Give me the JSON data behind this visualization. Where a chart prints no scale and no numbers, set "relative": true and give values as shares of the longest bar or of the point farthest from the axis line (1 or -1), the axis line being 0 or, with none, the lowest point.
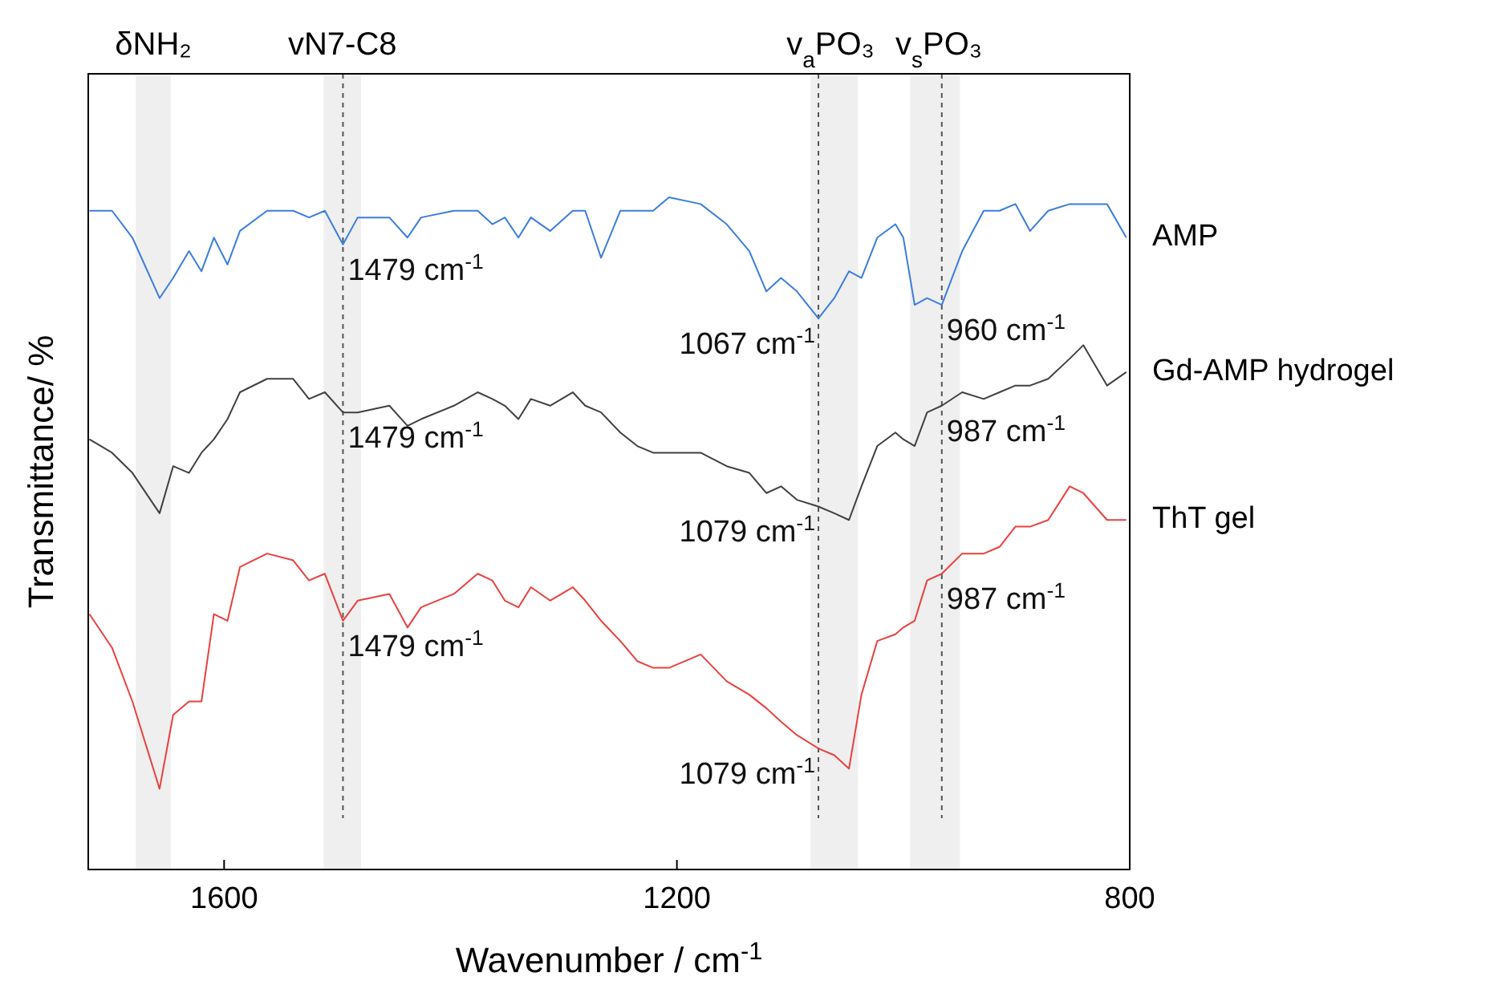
{
  "chart_data": {
    "type": "line",
    "relative": true,
    "xlabel": "Wavenumber / cm$^{-1}$",
    "ylabel": "Transmittance/ %",
    "xlim": [
      1720,
      800
    ],
    "xticks": [
      1600,
      1200,
      800
    ],
    "line_style": "solid",
    "marker": "none",
    "x": [
      1719,
      1699,
      1681,
      1657,
      1645,
      1631,
      1620,
      1609,
      1597,
      1586,
      1562,
      1539,
      1525,
      1511,
      1495,
      1482,
      1454,
      1438,
      1426,
      1397,
      1376,
      1363,
      1352,
      1340,
      1329,
      1312,
      1292,
      1281,
      1267,
      1250,
      1235,
      1221,
      1207,
      1179,
      1156,
      1136,
      1121,
      1108,
      1094,
      1075,
      1061,
      1048,
      1037,
      1023,
      1007,
      1000,
      990,
      979,
      966,
      948,
      929,
      915,
      901,
      888,
      872,
      853,
      841,
      820,
      803
    ],
    "series": [
      {
        "name": "AMP",
        "color": "#3b7ddd",
        "values": [
          0.98,
          0.98,
          0.94,
          0.85,
          0.88,
          0.92,
          0.89,
          0.94,
          0.9,
          0.95,
          0.98,
          0.98,
          0.97,
          0.98,
          0.93,
          0.97,
          0.97,
          0.94,
          0.97,
          0.98,
          0.98,
          0.96,
          0.97,
          0.94,
          0.97,
          0.95,
          0.98,
          0.98,
          0.91,
          0.98,
          0.98,
          0.98,
          1.0,
          0.99,
          0.96,
          0.92,
          0.86,
          0.88,
          0.86,
          0.82,
          0.85,
          0.89,
          0.88,
          0.94,
          0.96,
          0.94,
          0.84,
          0.85,
          0.84,
          0.92,
          0.98,
          0.98,
          0.99,
          0.95,
          0.98,
          0.99,
          0.99,
          0.99,
          0.94
        ]
      },
      {
        "name": "Gd-AMP hydrogel",
        "color": "#404040",
        "values": [
          0.64,
          0.62,
          0.59,
          0.53,
          0.6,
          0.59,
          0.62,
          0.64,
          0.67,
          0.71,
          0.73,
          0.73,
          0.7,
          0.71,
          0.68,
          0.68,
          0.69,
          0.66,
          0.67,
          0.69,
          0.71,
          0.7,
          0.69,
          0.67,
          0.7,
          0.69,
          0.71,
          0.69,
          0.68,
          0.65,
          0.63,
          0.62,
          0.62,
          0.62,
          0.6,
          0.59,
          0.56,
          0.57,
          0.55,
          0.54,
          0.53,
          0.52,
          0.57,
          0.63,
          0.65,
          0.64,
          0.63,
          0.68,
          0.69,
          0.71,
          0.7,
          0.71,
          0.72,
          0.72,
          0.73,
          0.76,
          0.78,
          0.72,
          0.74
        ]
      },
      {
        "name": "ThT gel",
        "color": "#e8413f",
        "values": [
          0.38,
          0.33,
          0.25,
          0.12,
          0.23,
          0.25,
          0.25,
          0.38,
          0.37,
          0.45,
          0.47,
          0.46,
          0.43,
          0.44,
          0.37,
          0.4,
          0.41,
          0.36,
          0.39,
          0.41,
          0.44,
          0.43,
          0.4,
          0.39,
          0.42,
          0.4,
          0.42,
          0.4,
          0.37,
          0.34,
          0.31,
          0.3,
          0.3,
          0.32,
          0.28,
          0.26,
          0.24,
          0.22,
          0.2,
          0.18,
          0.17,
          0.15,
          0.26,
          0.34,
          0.35,
          0.36,
          0.37,
          0.43,
          0.44,
          0.47,
          0.47,
          0.48,
          0.51,
          0.51,
          0.52,
          0.57,
          0.56,
          0.52,
          0.52
        ]
      }
    ],
    "bands": [
      {
        "axis": "x",
        "from": 1678,
        "to": 1647,
        "label": "δNH₂",
        "color": "#efefef"
      },
      {
        "axis": "x",
        "from": 1512,
        "to": 1479,
        "label": "vN7-C8",
        "color": "#efefef"
      },
      {
        "axis": "x",
        "from": 1082,
        "to": 1040,
        "label": "v$_{a}$PO₃",
        "color": "#efefef"
      },
      {
        "axis": "x",
        "from": 994,
        "to": 950,
        "label": "v$_{s}$PO₃",
        "color": "#efefef"
      }
    ],
    "ref_lines": [
      {
        "axis": "x",
        "value": 1495,
        "color": "#555555",
        "line_style": "dashed"
      },
      {
        "axis": "x",
        "value": 1075,
        "color": "#555555",
        "line_style": "dashed"
      },
      {
        "axis": "x",
        "value": 966,
        "color": "#555555",
        "line_style": "dashed"
      }
    ],
    "annotations": [
      {
        "text": "1479 cm$^{-1}$",
        "x": 1495,
        "y": 0.93
      },
      {
        "text": "1479 cm$^{-1}$",
        "x": 1495,
        "y": 0.68
      },
      {
        "text": "1479 cm$^{-1}$",
        "x": 1495,
        "y": 0.37
      },
      {
        "text": "1067 cm$^{-1}$",
        "x": 1075,
        "y": 0.82
      },
      {
        "text": "1079 cm$^{-1}$",
        "x": 1075,
        "y": 0.54
      },
      {
        "text": "1079 cm$^{-1}$",
        "x": 1075,
        "y": 0.18
      },
      {
        "text": "960 cm$^{-1}$",
        "x": 966,
        "y": 0.84
      },
      {
        "text": "987 cm$^{-1}$",
        "x": 966,
        "y": 0.69
      },
      {
        "text": "987 cm$^{-1}$",
        "x": 966,
        "y": 0.44
      }
    ]
  }
}
